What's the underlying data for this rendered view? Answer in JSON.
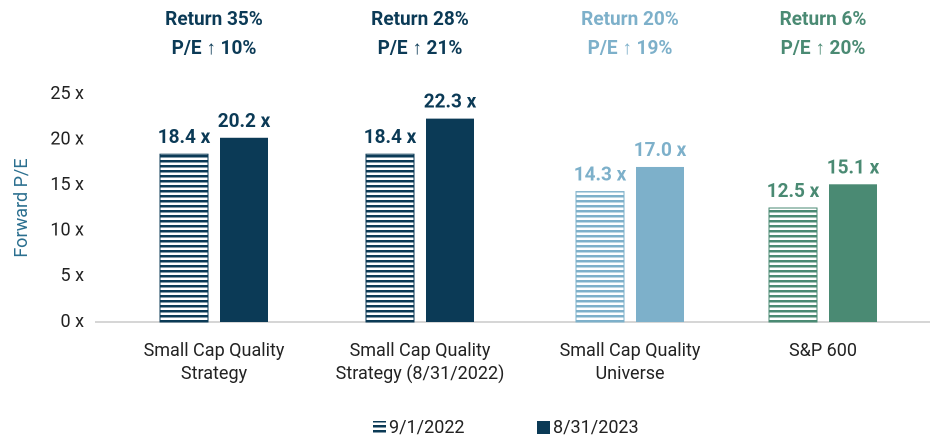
{
  "chart_data": {
    "type": "bar",
    "y_label": "Forward P/E",
    "categories": [
      "Small Cap Quality Strategy",
      "Small Cap Quality Strategy (8/31/2022)",
      "Small Cap Quality Universe",
      "S&P 600"
    ],
    "category_colors": [
      "#0b3a56",
      "#0b3a56",
      "#7db0ca",
      "#4a8a73"
    ],
    "annotations": [
      [
        "Return 35%",
        "P/E ↑ 10%"
      ],
      [
        "Return 28%",
        "P/E ↑ 21%"
      ],
      [
        "Return 20%",
        "P/E ↑ 19%"
      ],
      [
        "Return 6%",
        "P/E ↑ 20%"
      ]
    ],
    "series": [
      {
        "name": "9/1/2022",
        "color": "#0b3a56",
        "pattern": "striped",
        "values": [
          18.4,
          18.4,
          14.3,
          12.5
        ],
        "value_labels": [
          "18.4 x",
          "18.4 x",
          "14.3 x",
          "12.5 x"
        ]
      },
      {
        "name": "8/31/2023",
        "color": "#0b3a56",
        "pattern": "solid",
        "values": [
          20.2,
          22.3,
          17.0,
          15.1
        ],
        "value_labels": [
          "20.2 x",
          "22.3 x",
          "17.0 x",
          "15.1 x"
        ]
      }
    ],
    "ylim": [
      0,
      25
    ],
    "yticks": [
      {
        "value": 0,
        "label": "0 x"
      },
      {
        "value": 5,
        "label": "5 x"
      },
      {
        "value": 10,
        "label": "10 x"
      },
      {
        "value": 15,
        "label": "15 x"
      },
      {
        "value": 20,
        "label": "20 x"
      },
      {
        "value": 25,
        "label": "25 x"
      }
    ],
    "grid": false
  }
}
